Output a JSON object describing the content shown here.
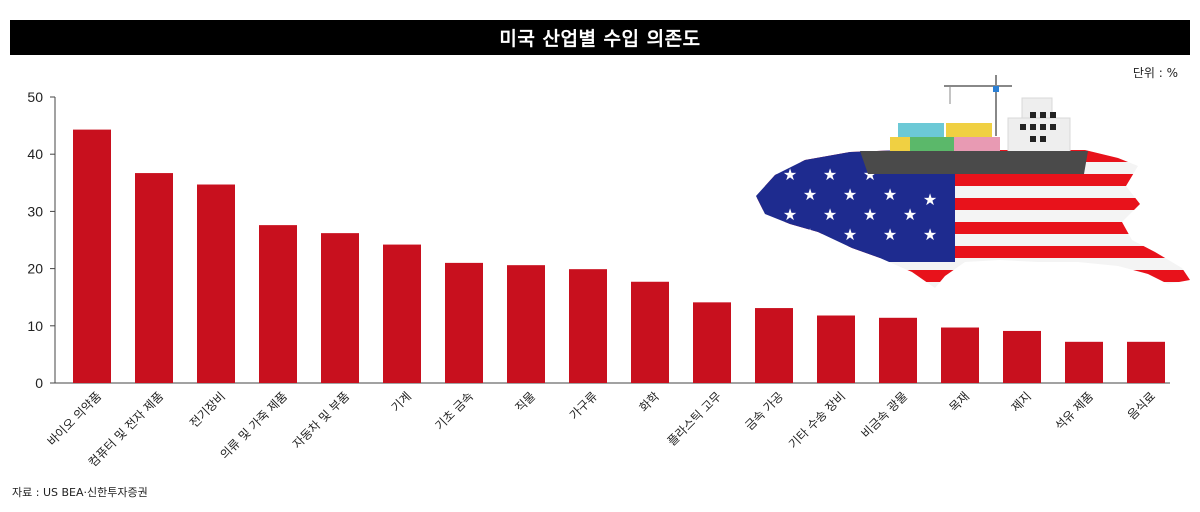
{
  "title": "미국 산업별 수입 의존도",
  "unit_label": "단위 : %",
  "source": "자료 : US BEA·신한투자증권",
  "colors": {
    "bar": "#c8101e",
    "title_bg": "#000000"
  },
  "illustration": "us-map-cargo-ship-illustration",
  "chart_data": {
    "type": "bar",
    "title": "미국 산업별 수입 의존도",
    "xlabel": "",
    "ylabel": "",
    "ylim": [
      0,
      50
    ],
    "yticks": [
      0,
      10,
      20,
      30,
      40,
      50
    ],
    "grid": false,
    "categories": [
      "바이오 의약품",
      "컴퓨터 및 전자 제품",
      "전기장비",
      "의류 및 가죽 제품",
      "자동차 및 부품",
      "기계",
      "기초 금속",
      "직물",
      "가구류",
      "화학",
      "플라스틱 고무",
      "금속 가공",
      "기타 수송 장비",
      "비금속 광물",
      "목재",
      "제지",
      "석유 제품",
      "음식료"
    ],
    "values": [
      44.3,
      36.7,
      34.7,
      27.6,
      26.2,
      24.2,
      21.0,
      20.6,
      19.9,
      17.7,
      14.1,
      13.1,
      11.8,
      11.4,
      9.7,
      9.1,
      7.2,
      7.2
    ]
  }
}
